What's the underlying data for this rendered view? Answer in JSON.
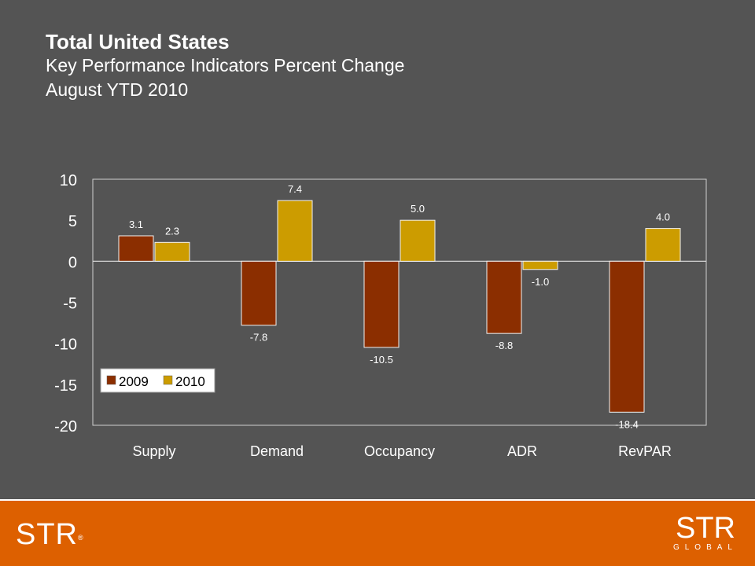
{
  "header": {
    "title": "Total United States",
    "subtitle_1": "Key Performance Indicators Percent Change",
    "subtitle_2": "August YTD 2010"
  },
  "footer": {
    "logo_left": "STR",
    "logo_right_main": "STR",
    "logo_right_sub": "GLOBAL"
  },
  "colors": {
    "series_2009": "#8B2E00",
    "series_2010": "#CC9C00",
    "background": "#545454",
    "footer": "#DD6000"
  },
  "chart_data": {
    "type": "bar",
    "categories": [
      "Supply",
      "Demand",
      "Occupancy",
      "ADR",
      "RevPAR"
    ],
    "series": [
      {
        "name": "2009",
        "values": [
          3.1,
          -7.8,
          -10.5,
          -8.8,
          -18.4
        ],
        "labels": [
          "3.1",
          "-7.8",
          "-10.5",
          "-8.8",
          "-18.4"
        ]
      },
      {
        "name": "2010",
        "values": [
          2.3,
          7.4,
          5.0,
          -1.0,
          4.0
        ],
        "labels": [
          "2.3",
          "7.4",
          "5.0",
          "-1.0",
          "4.0"
        ]
      }
    ],
    "ylim": [
      -20,
      10
    ],
    "yticks": [
      "10",
      "5",
      "0",
      "-5",
      "-10",
      "-15",
      "-20"
    ],
    "ytick_values": [
      10,
      5,
      0,
      -5,
      -10,
      -15,
      -20
    ],
    "legend_position": "bottom-left",
    "grid": false
  }
}
